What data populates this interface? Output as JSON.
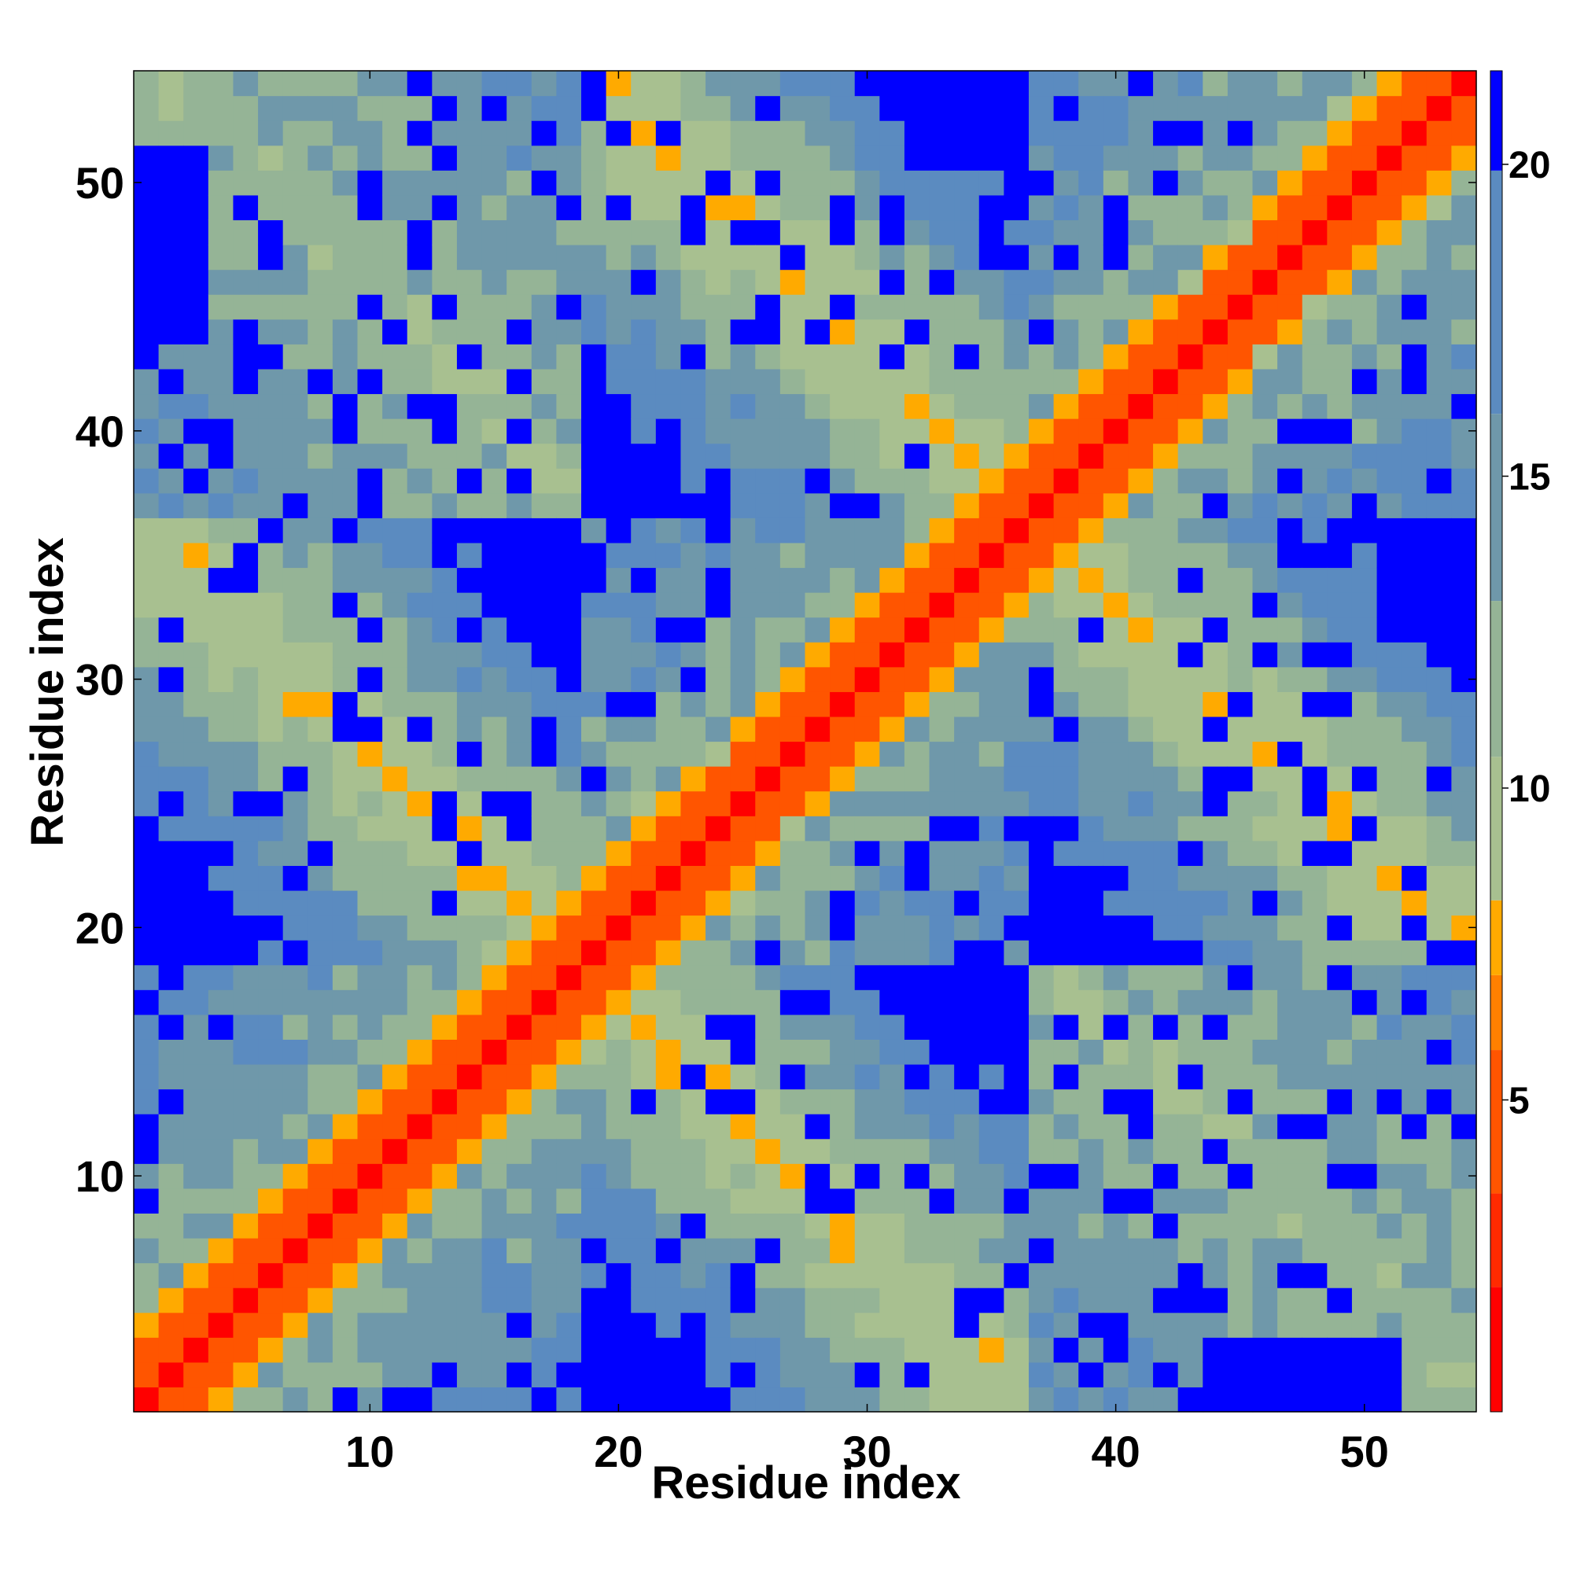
{
  "chart_data": {
    "type": "heatmap",
    "title": "",
    "xlabel": "Residue index",
    "ylabel": "Residue index",
    "n_residues": 54,
    "xlim": [
      0.5,
      54.5
    ],
    "ylim": [
      0.5,
      54.5
    ],
    "x_ticks": [
      10,
      20,
      30,
      40,
      50
    ],
    "y_ticks": [
      10,
      20,
      30,
      40,
      50
    ],
    "colorbar": {
      "ticks": [
        5,
        10,
        15,
        20
      ],
      "range": [
        0,
        21.5
      ],
      "colors": {
        "contact": "#ff0000",
        "near": "#ff5500",
        "mid": "#ffaa00",
        "pale": "#a8c090",
        "sage": "#95b496",
        "teal": "#6f98aa",
        "steel": "#5b8bc0",
        "far": "#0000ff"
      }
    },
    "value_description": "Symmetric residue-residue distance matrix; values on the main diagonal ~0-2, helical cross-contacts ~5-8, distant regions above 20 (blue).",
    "grid": false,
    "legend": "colorbar right"
  }
}
